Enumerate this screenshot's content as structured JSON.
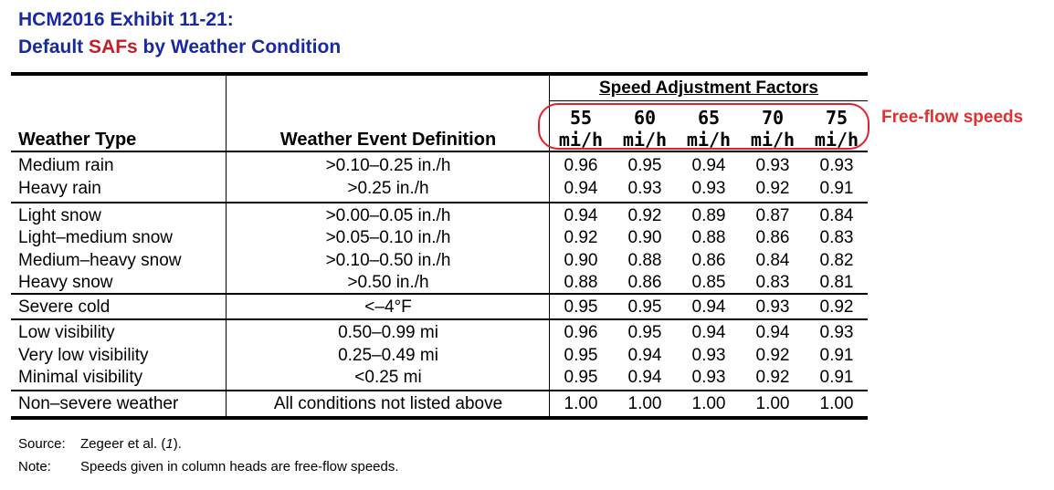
{
  "title": {
    "line1": "HCM2016 Exhibit 11-21:",
    "line2_prefix": "Default ",
    "line2_highlight": "SAFs",
    "line2_suffix": " by Weather Condition"
  },
  "annotation": {
    "label": "Free-flow speeds",
    "color": "#e03030"
  },
  "table": {
    "col_weather_type": "Weather Type",
    "col_definition": "Weather Event Definition",
    "saf_header": "Speed Adjustment Factors",
    "speeds": [
      {
        "value": "55",
        "unit": "mi/h"
      },
      {
        "value": "60",
        "unit": "mi/h"
      },
      {
        "value": "65",
        "unit": "mi/h"
      },
      {
        "value": "70",
        "unit": "mi/h"
      },
      {
        "value": "75",
        "unit": "mi/h"
      }
    ],
    "rows": [
      {
        "type": "Medium rain",
        "definition": ">0.10–0.25 in./h",
        "values": [
          "0.96",
          "0.95",
          "0.94",
          "0.93",
          "0.93"
        ]
      },
      {
        "type": "Heavy rain",
        "definition": ">0.25 in./h",
        "values": [
          "0.94",
          "0.93",
          "0.93",
          "0.92",
          "0.91"
        ]
      },
      {
        "type": "Light snow",
        "definition": ">0.00–0.05 in./h",
        "values": [
          "0.94",
          "0.92",
          "0.89",
          "0.87",
          "0.84"
        ]
      },
      {
        "type": "Light–medium snow",
        "definition": ">0.05–0.10 in./h",
        "values": [
          "0.92",
          "0.90",
          "0.88",
          "0.86",
          "0.83"
        ]
      },
      {
        "type": "Medium–heavy snow",
        "definition": ">0.10–0.50 in./h",
        "values": [
          "0.90",
          "0.88",
          "0.86",
          "0.84",
          "0.82"
        ]
      },
      {
        "type": "Heavy snow",
        "definition": ">0.50 in./h",
        "values": [
          "0.88",
          "0.86",
          "0.85",
          "0.83",
          "0.81"
        ]
      },
      {
        "type": "Severe cold",
        "definition": "<–4°F",
        "values": [
          "0.95",
          "0.95",
          "0.94",
          "0.93",
          "0.92"
        ]
      },
      {
        "type": "Low visibility",
        "definition": "0.50–0.99 mi",
        "values": [
          "0.96",
          "0.95",
          "0.94",
          "0.94",
          "0.93"
        ]
      },
      {
        "type": "Very low visibility",
        "definition": "0.25–0.49 mi",
        "values": [
          "0.95",
          "0.94",
          "0.93",
          "0.92",
          "0.91"
        ]
      },
      {
        "type": "Minimal visibility",
        "definition": "<0.25 mi",
        "values": [
          "0.95",
          "0.94",
          "0.93",
          "0.92",
          "0.91"
        ]
      },
      {
        "type": "Non–severe weather",
        "definition": "All conditions not listed above",
        "values": [
          "1.00",
          "1.00",
          "1.00",
          "1.00",
          "1.00"
        ]
      }
    ]
  },
  "footnotes": {
    "source_label": "Source:",
    "source_text": "Zegeer et al. (",
    "source_ref": "1",
    "source_end": ").",
    "note_label": "Note:",
    "note_text": "Speeds given in column heads are free-flow speeds."
  }
}
